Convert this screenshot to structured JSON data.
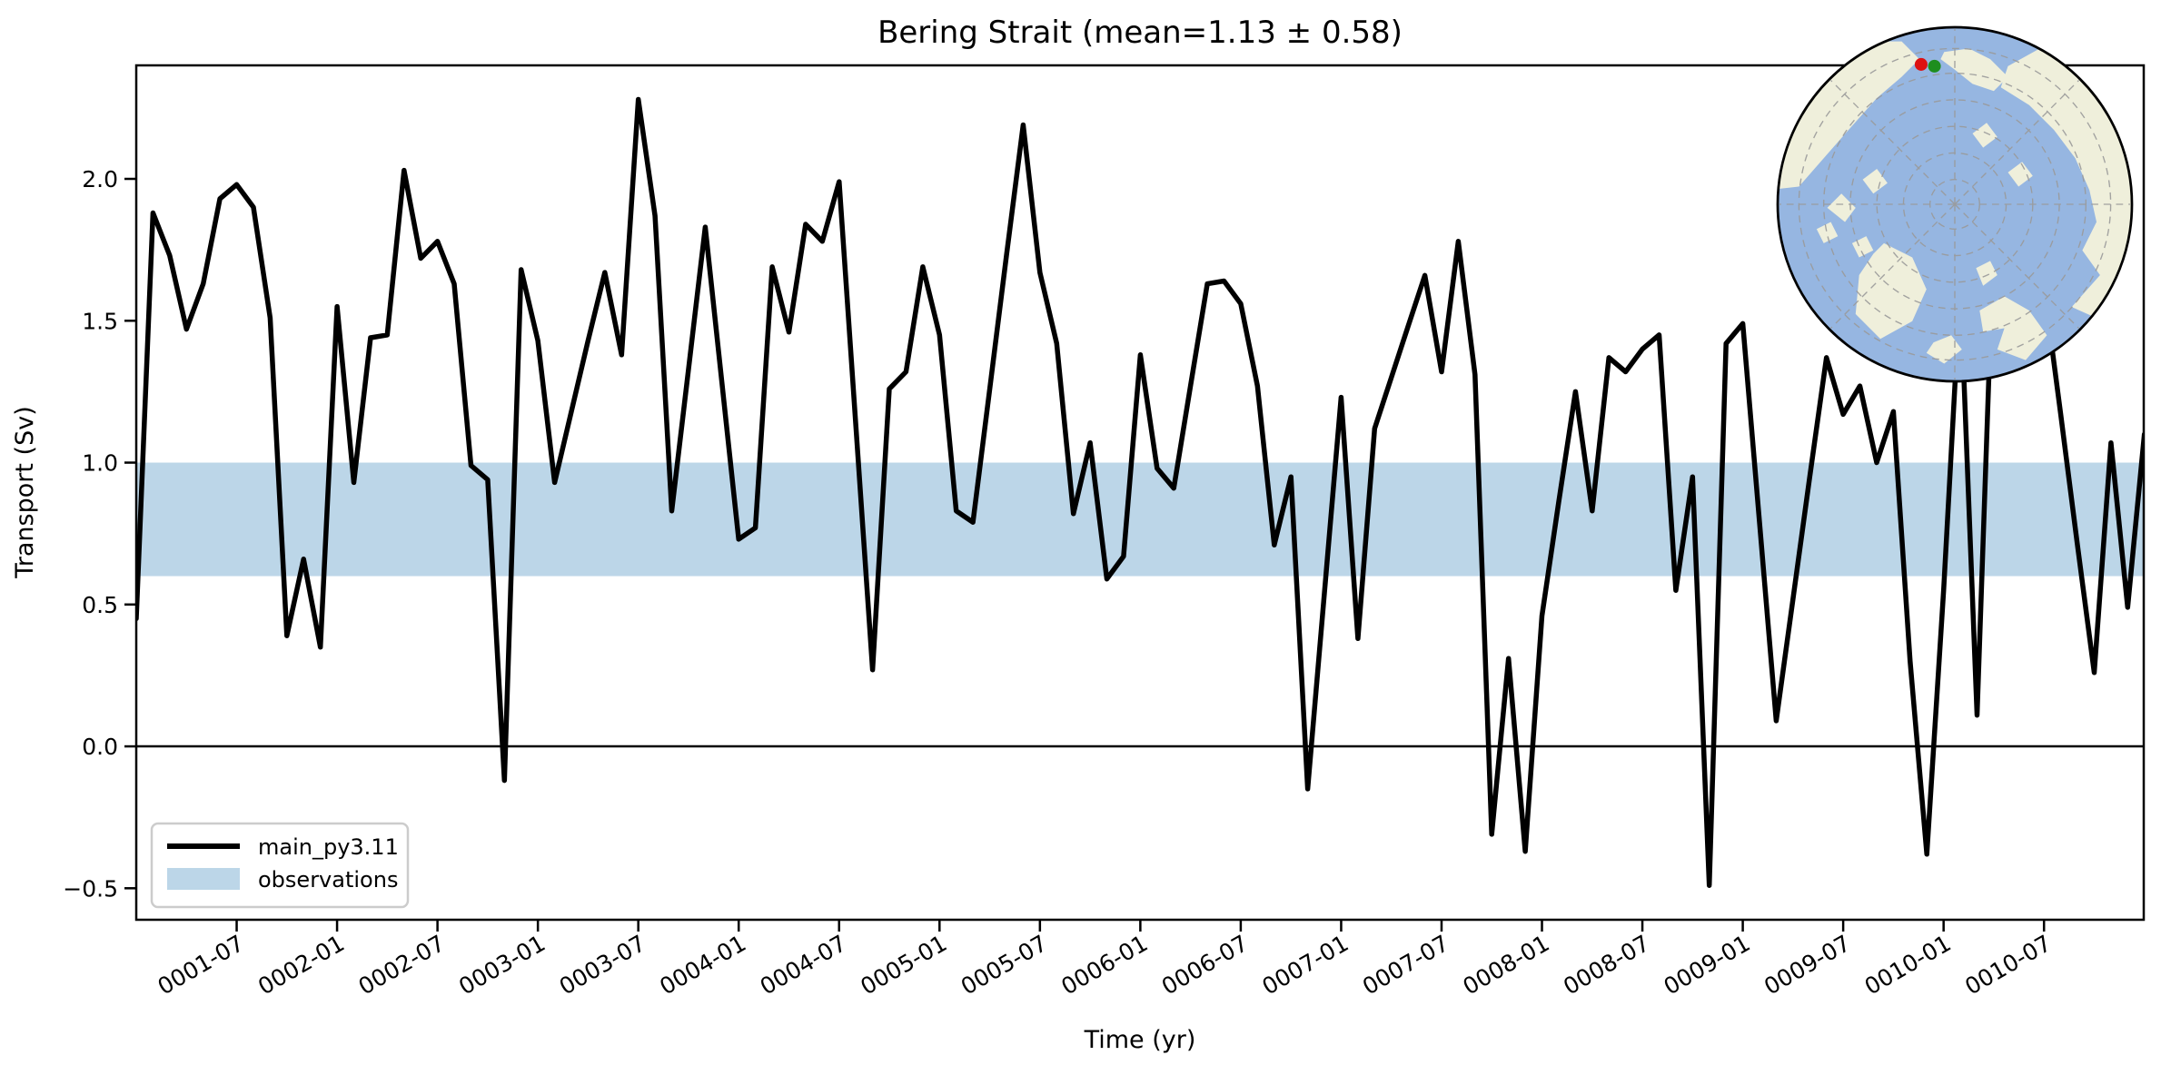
{
  "figure": {
    "background": "#ffffff"
  },
  "chart_data": {
    "type": "line",
    "title": "Bering Strait (mean=1.13 ± 0.58)",
    "xlabel": "Time (yr)",
    "ylabel": "Transport (Sv)",
    "x_start": "0001-01",
    "frequency": "monthly",
    "xlim_months": [
      0,
      119.96
    ],
    "ylim": [
      -0.611,
      2.4
    ],
    "grid": false,
    "zero_line": true,
    "x_tick_months": [
      6,
      12,
      18,
      24,
      30,
      36,
      42,
      48,
      54,
      60,
      66,
      72,
      78,
      84,
      90,
      96,
      102,
      108,
      114
    ],
    "x_tick_labels": [
      "0001-07",
      "0002-01",
      "0002-07",
      "0003-01",
      "0003-07",
      "0004-01",
      "0004-07",
      "0005-01",
      "0005-07",
      "0006-01",
      "0006-07",
      "0007-01",
      "0007-07",
      "0008-01",
      "0008-07",
      "0009-01",
      "0009-07",
      "0010-01",
      "0010-07"
    ],
    "y_tick_values": [
      -0.5,
      0.0,
      0.5,
      1.0,
      1.5,
      2.0
    ],
    "y_tick_labels": [
      "−0.5",
      "0.0",
      "0.5",
      "1.0",
      "1.5",
      "2.0"
    ],
    "series": [
      {
        "name": "main_py3.11",
        "color": "#000000",
        "line_width": 5.5,
        "values": [
          0.45,
          1.88,
          1.73,
          1.47,
          1.63,
          1.93,
          1.98,
          1.9,
          1.51,
          0.39,
          0.66,
          0.35,
          1.55,
          0.93,
          1.44,
          1.45,
          2.03,
          1.72,
          1.78,
          1.63,
          0.99,
          0.94,
          -0.12,
          1.68,
          1.43,
          0.93,
          1.18,
          1.43,
          1.67,
          1.38,
          2.28,
          1.87,
          0.83,
          1.33,
          1.83,
          1.28,
          0.73,
          0.77,
          1.69,
          1.46,
          1.84,
          1.78,
          1.99,
          1.13,
          0.27,
          1.26,
          1.32,
          1.69,
          1.45,
          0.83,
          0.79,
          1.26,
          1.73,
          2.19,
          1.67,
          1.42,
          0.82,
          1.07,
          0.59,
          0.67,
          1.38,
          0.98,
          0.91,
          1.27,
          1.63,
          1.64,
          1.56,
          1.27,
          0.71,
          0.95,
          -0.15,
          0.54,
          1.23,
          0.38,
          1.12,
          1.3,
          1.48,
          1.66,
          1.32,
          1.78,
          1.31,
          -0.31,
          0.31,
          -0.37,
          0.46,
          0.86,
          1.25,
          0.83,
          1.37,
          1.32,
          1.4,
          1.45,
          0.55,
          0.95,
          -0.49,
          1.42,
          1.49,
          0.79,
          0.09,
          0.52,
          0.95,
          1.37,
          1.17,
          1.27,
          1.0,
          1.18,
          0.3,
          -0.38,
          0.55,
          1.62,
          0.11,
          1.8,
          1.65,
          1.5,
          1.62,
          1.17,
          0.71,
          0.26,
          1.07,
          0.49,
          1.1
        ]
      }
    ],
    "observations_band": {
      "label": "observations",
      "color": "#bcd6e8",
      "range": [
        0.6,
        1.0
      ]
    },
    "legend": {
      "position": "lower left",
      "entries": [
        "main_py3.11",
        "observations"
      ]
    }
  },
  "inset_map": {
    "description": "arctic-polar-stereographic-map",
    "ocean_color": "#96b6e1",
    "land_color": "#efefdb",
    "graticule_color": "#9a9a9a",
    "border_color": "#000000",
    "markers": [
      {
        "name": "station-marker-red",
        "color": "#dd1111"
      },
      {
        "name": "station-marker-green",
        "color": "#1e8e1e"
      }
    ]
  }
}
